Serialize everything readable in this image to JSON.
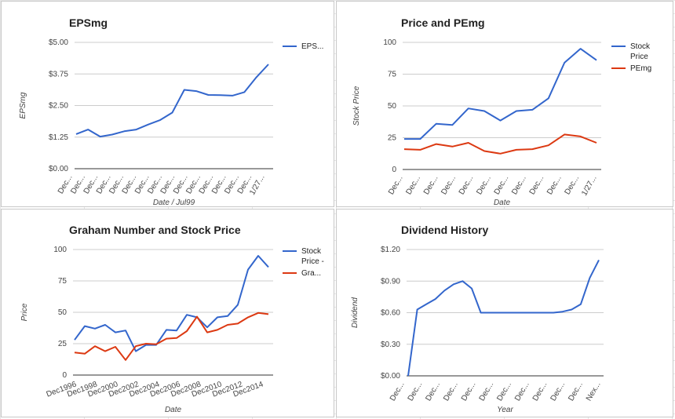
{
  "colors": {
    "blue": "#3366cc",
    "red": "#dc3912"
  },
  "chart_data": [
    {
      "id": "eps",
      "type": "line",
      "title": "EPSmg",
      "xlabel": "Date / Jul99",
      "ylabel": "EPSmg",
      "ylim": [
        0,
        5
      ],
      "yticks": [
        "$0.00",
        "$1.25",
        "$2.50",
        "$3.75",
        "$5.00"
      ],
      "xticks": [
        "Dec...",
        "Dec...",
        "Dec...",
        "Dec...",
        "Dec...",
        "Dec...",
        "Dec...",
        "Dec...",
        "Dec...",
        "Dec...",
        "Dec...",
        "Dec...",
        "Dec...",
        "Dec...",
        "Dec...",
        "1/27..."
      ],
      "legend": [
        "EPS..."
      ],
      "series": [
        {
          "color": "#3366cc",
          "values": [
            1.37,
            1.55,
            1.27,
            1.35,
            1.48,
            1.55,
            1.75,
            1.93,
            2.22,
            3.12,
            3.07,
            2.92,
            2.91,
            2.89,
            3.03,
            3.62,
            4.13
          ]
        }
      ]
    },
    {
      "id": "price",
      "type": "line",
      "title": "Price and PEmg",
      "xlabel": "Date",
      "ylabel": "Stock Price",
      "ylim": [
        0,
        100
      ],
      "yticks": [
        "0",
        "25",
        "50",
        "75",
        "100"
      ],
      "xticks": [
        "Dec...",
        "Dec...",
        "Dec...",
        "Dec...",
        "Dec...",
        "Dec...",
        "Dec...",
        "Dec...",
        "Dec...",
        "Dec...",
        "Dec...",
        "1/27..."
      ],
      "legend": [
        "Stock Price",
        "PEmg"
      ],
      "series": [
        {
          "color": "#3366cc",
          "values": [
            24,
            24,
            36,
            35,
            48,
            46,
            38.5,
            46,
            47,
            56,
            84,
            95,
            86
          ]
        },
        {
          "color": "#dc3912",
          "values": [
            16,
            15.5,
            20,
            18,
            21,
            14.5,
            12.5,
            15.5,
            16,
            19,
            27.5,
            26,
            21
          ]
        }
      ]
    },
    {
      "id": "graham",
      "type": "line",
      "title": "Graham Number and Stock Price",
      "xlabel": "Date",
      "ylabel": "Price",
      "ylim": [
        0,
        100
      ],
      "yticks": [
        "0",
        "25",
        "50",
        "75",
        "100"
      ],
      "xticks": [
        "Dec1996",
        "Dec1998",
        "Dec2000",
        "Dec2002",
        "Dec2004",
        "Dec2006",
        "Dec2008",
        "Dec2010",
        "Dec2012",
        "Dec2014"
      ],
      "legend": [
        "Stock Price -",
        "Gra..."
      ],
      "series": [
        {
          "color": "#3366cc",
          "values": [
            28,
            39,
            37,
            40,
            34,
            35.5,
            19,
            24,
            24,
            36,
            35.5,
            48,
            46,
            38,
            46,
            47,
            56,
            84,
            95,
            86
          ]
        },
        {
          "color": "#dc3912",
          "values": [
            18,
            17,
            23,
            19,
            22.5,
            12,
            23,
            25,
            24.5,
            29,
            29.5,
            35,
            46.5,
            34,
            36,
            40,
            41,
            46,
            49.5,
            48.5
          ]
        }
      ]
    },
    {
      "id": "dividend",
      "type": "line",
      "title": "Dividend History",
      "xlabel": "Year",
      "ylabel": "Dividend",
      "ylim": [
        0,
        1.2
      ],
      "yticks": [
        "$0.00",
        "$0.30",
        "$0.60",
        "$0.90",
        "$1.20"
      ],
      "xticks": [
        "Dec...",
        "Dec...",
        "Dec...",
        "Dec...",
        "Dec...",
        "Dec...",
        "Dec...",
        "Dec...",
        "Dec...",
        "Dec...",
        "Dec...",
        "Nex..."
      ],
      "legend": [],
      "series": [
        {
          "color": "#3366cc",
          "values": [
            0,
            0.63,
            0.68,
            0.73,
            0.81,
            0.87,
            0.9,
            0.83,
            0.6,
            0.6,
            0.6,
            0.6,
            0.6,
            0.6,
            0.6,
            0.6,
            0.6,
            0.61,
            0.63,
            0.68,
            0.93,
            1.1
          ]
        }
      ]
    }
  ]
}
